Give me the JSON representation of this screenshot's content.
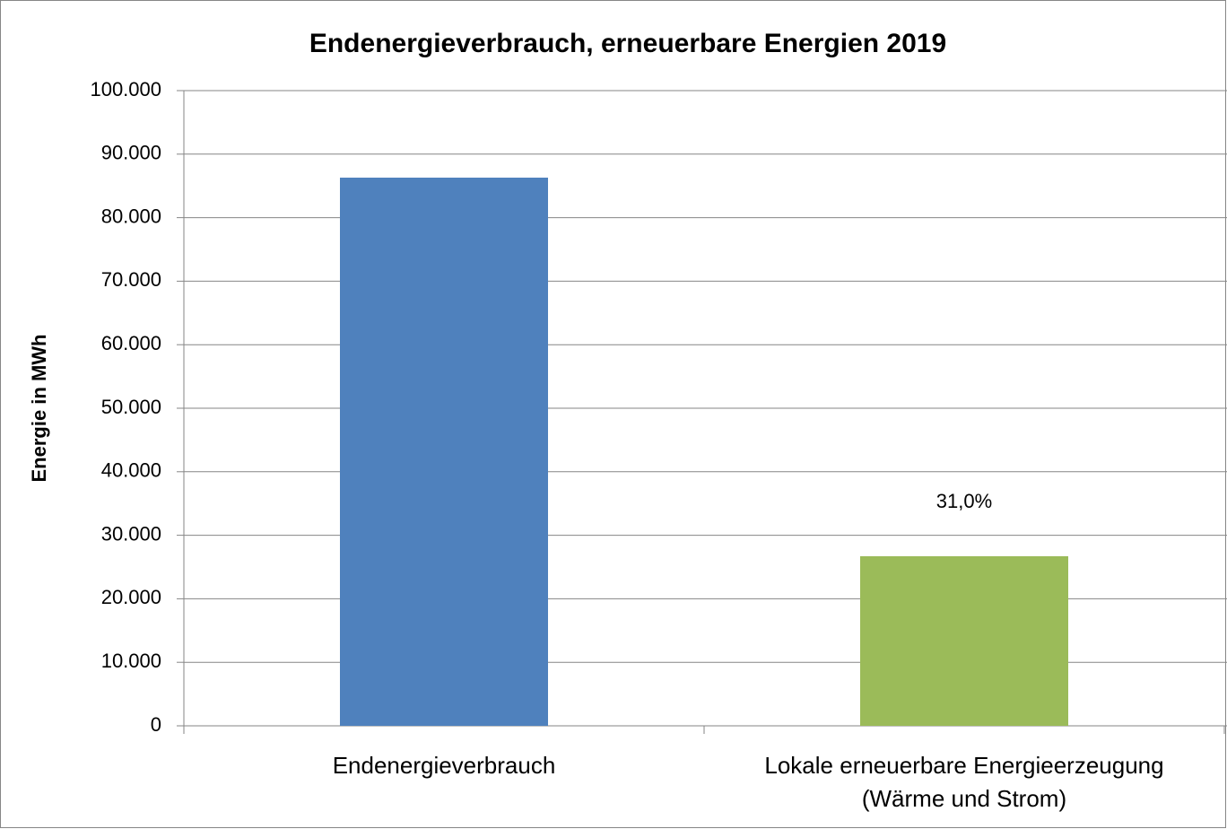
{
  "chart_data": {
    "type": "bar",
    "title": "Endenergieverbrauch, erneuerbare Energien 2019",
    "y_label": "Energie in MWh",
    "categories": [
      "Endenergieverbrauch",
      "Lokale erneuerbare Energieerzeugung\n(Wärme und Strom)"
    ],
    "values": [
      86300,
      26700
    ],
    "colors": [
      "#4f81bd",
      "#9bbb59"
    ],
    "annotation": "31,0%",
    "ylim": [
      0,
      100000
    ],
    "yticks": [
      0,
      {
        "value": 10000,
        "label": "10.000"
      },
      {
        "value": 20000,
        "label": "20.000"
      },
      {
        "value": 30000,
        "label": "30.000"
      },
      {
        "value": 40000,
        "label": "40.000"
      },
      {
        "value": 50000,
        "label": "50.000"
      },
      {
        "value": 60000,
        "label": "60.000"
      },
      {
        "value": 70000,
        "label": "70.000"
      },
      {
        "value": 80000,
        "label": "80.000"
      },
      {
        "value": 90000,
        "label": "90.000"
      },
      {
        "value": 100000,
        "label": "100.000"
      }
    ],
    "grid": true
  }
}
